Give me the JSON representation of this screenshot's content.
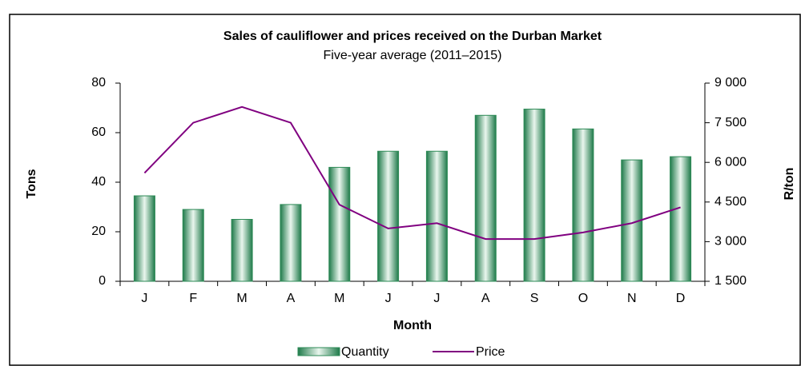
{
  "chart_data": {
    "type": "bar-line",
    "title": "Sales of cauliflower and prices received on the Durban Market",
    "subtitle": "Five-year average (2011–2015)",
    "x_label": "Month",
    "y_label": "Tons",
    "y2_label": "R/ton",
    "categories": [
      "J",
      "F",
      "M",
      "A",
      "M",
      "J",
      "J",
      "A",
      "S",
      "O",
      "N",
      "D"
    ],
    "series": [
      {
        "name": "Quantity",
        "type": "bar",
        "color": "#2e8b57",
        "values": [
          34.5,
          29,
          25,
          31,
          46,
          52.5,
          52.5,
          67,
          69.5,
          61.5,
          49,
          50.3
        ]
      },
      {
        "name": "Price",
        "type": "line",
        "axis": "y2",
        "color": "#800080",
        "values": [
          5600,
          7500,
          8100,
          7500,
          4400,
          3500,
          3700,
          3100,
          3100,
          3350,
          3700,
          4300
        ]
      }
    ],
    "ylim": [
      0,
      80
    ],
    "yticks": [
      0,
      20,
      40,
      60,
      80
    ],
    "y2lim": [
      1500,
      9000
    ],
    "y2ticks": [
      {
        "value": 1500,
        "label": "1 500"
      },
      {
        "value": 3000,
        "label": "3 000"
      },
      {
        "value": 4500,
        "label": "4 500"
      },
      {
        "value": 6000,
        "label": "6 000"
      },
      {
        "value": 7500,
        "label": "7 500"
      },
      {
        "value": 9000,
        "label": "9 000"
      }
    ],
    "legend": "bottom"
  }
}
